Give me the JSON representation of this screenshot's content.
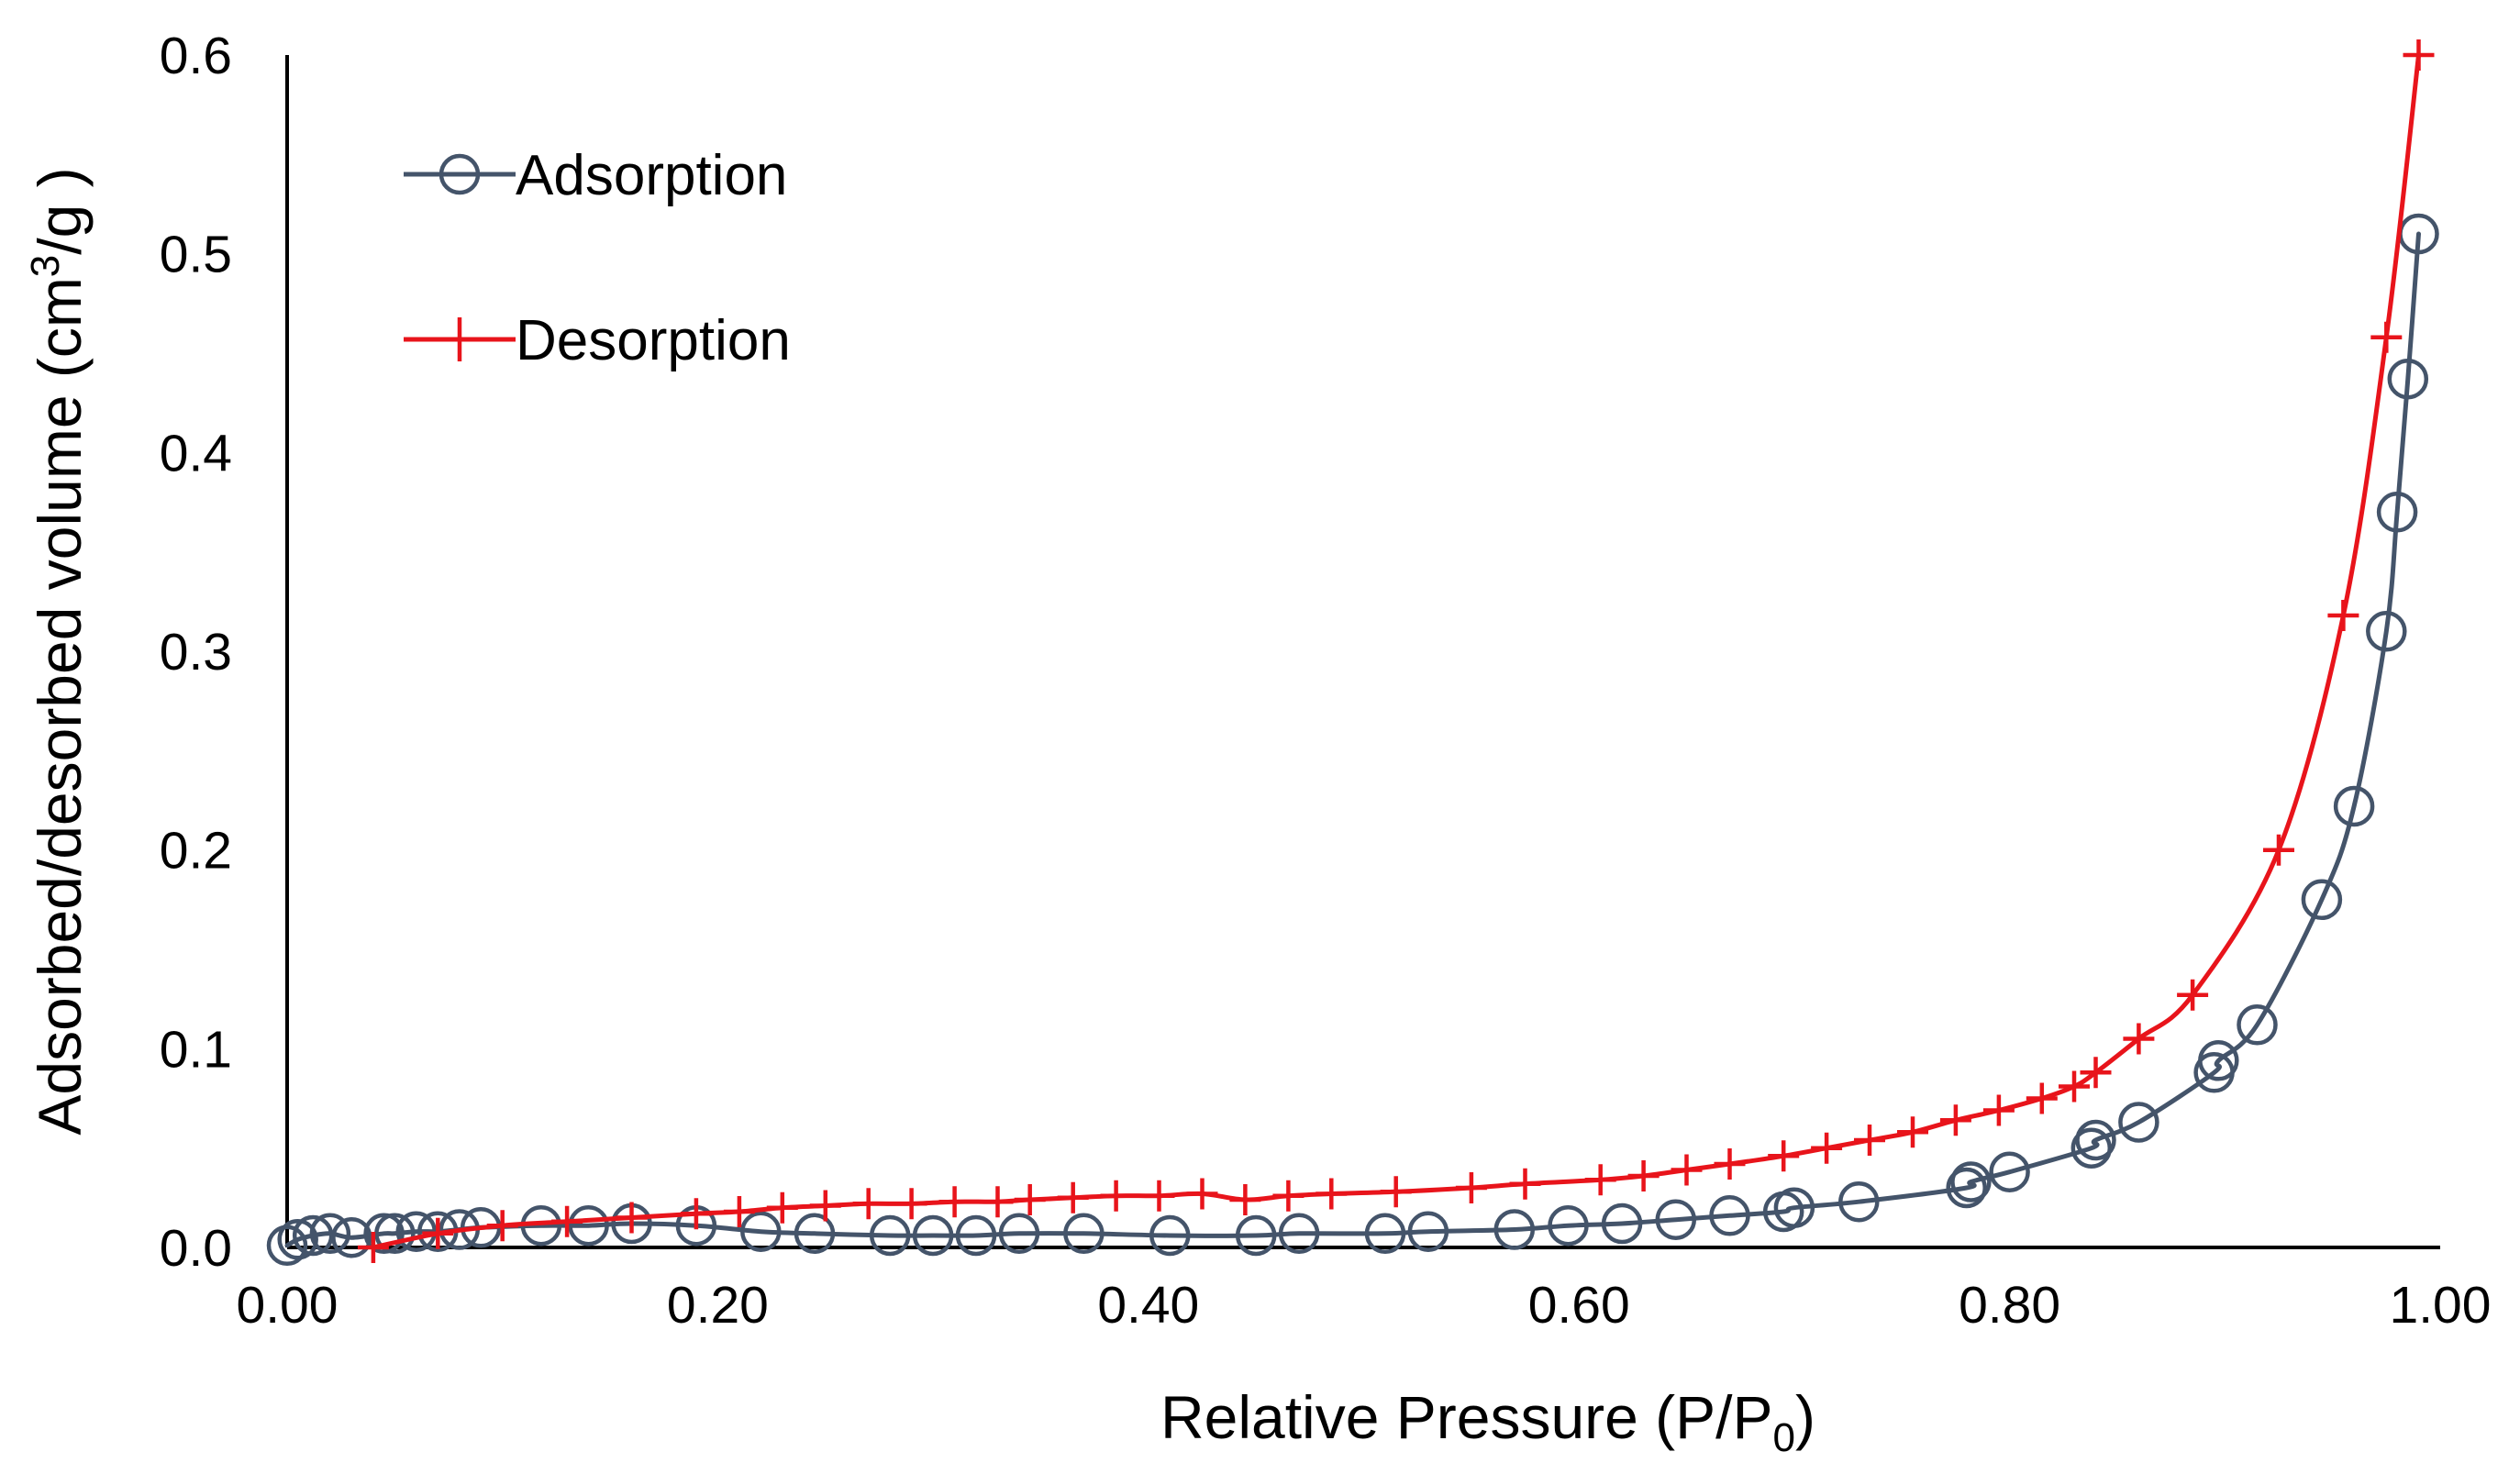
{
  "chart_data": {
    "type": "line",
    "title": "",
    "xlabel": {
      "prefix": "Relative Pressure (P/P",
      "subscript": "0",
      "suffix": ")"
    },
    "ylabel": {
      "prefix": "Adsorbed/desorbed volume (cm",
      "superscript": "3",
      "suffix": "/g )"
    },
    "xlim": [
      0,
      1
    ],
    "ylim": [
      0,
      0.6
    ],
    "xticks": [
      0,
      0.2,
      0.4,
      0.6,
      0.8,
      1.0
    ],
    "xtick_labels": [
      "0.00",
      "0.20",
      "0.40",
      "0.60",
      "0.80",
      "1.00"
    ],
    "yticks": [
      0,
      0.1,
      0.2,
      0.3,
      0.4,
      0.5,
      0.6
    ],
    "ytick_labels": [
      "0.0",
      "0.1",
      "0.2",
      "0.3",
      "0.4",
      "0.5",
      "0.6"
    ],
    "grid": false,
    "legend_position": "top-left",
    "series": [
      {
        "name": "Adsorption",
        "color": "#44546A",
        "marker": "circle",
        "x": [
          0.0,
          0.005,
          0.012,
          0.02,
          0.03,
          0.045,
          0.05,
          0.06,
          0.07,
          0.08,
          0.09,
          0.118,
          0.14,
          0.16,
          0.19,
          0.22,
          0.245,
          0.28,
          0.3,
          0.32,
          0.34,
          0.37,
          0.41,
          0.45,
          0.47,
          0.51,
          0.53,
          0.57,
          0.595,
          0.62,
          0.645,
          0.67,
          0.695,
          0.7,
          0.73,
          0.78,
          0.782,
          0.8,
          0.838,
          0.84,
          0.86,
          0.895,
          0.897,
          0.915,
          0.945,
          0.96,
          0.975,
          0.98,
          0.985,
          0.99
        ],
        "y": [
          0.001,
          0.004,
          0.006,
          0.007,
          0.005,
          0.007,
          0.007,
          0.008,
          0.008,
          0.009,
          0.01,
          0.011,
          0.011,
          0.012,
          0.011,
          0.008,
          0.007,
          0.006,
          0.006,
          0.006,
          0.007,
          0.007,
          0.006,
          0.006,
          0.007,
          0.007,
          0.008,
          0.009,
          0.011,
          0.012,
          0.014,
          0.016,
          0.018,
          0.02,
          0.023,
          0.03,
          0.033,
          0.038,
          0.05,
          0.054,
          0.063,
          0.088,
          0.094,
          0.112,
          0.175,
          0.222,
          0.31,
          0.37,
          0.437,
          0.51
        ]
      },
      {
        "name": "Desorption",
        "color": "#E8141B",
        "marker": "plus",
        "x": [
          0.04,
          0.07,
          0.1,
          0.13,
          0.16,
          0.19,
          0.21,
          0.23,
          0.25,
          0.27,
          0.29,
          0.31,
          0.33,
          0.345,
          0.365,
          0.385,
          0.405,
          0.425,
          0.445,
          0.465,
          0.485,
          0.515,
          0.55,
          0.575,
          0.61,
          0.63,
          0.65,
          0.67,
          0.695,
          0.715,
          0.735,
          0.755,
          0.775,
          0.795,
          0.815,
          0.83,
          0.84,
          0.86,
          0.885,
          0.925,
          0.955,
          0.975,
          0.99
        ],
        "y": [
          0.0,
          0.007,
          0.011,
          0.013,
          0.015,
          0.017,
          0.018,
          0.02,
          0.021,
          0.022,
          0.022,
          0.023,
          0.023,
          0.024,
          0.025,
          0.026,
          0.026,
          0.027,
          0.024,
          0.026,
          0.027,
          0.028,
          0.03,
          0.032,
          0.034,
          0.036,
          0.039,
          0.042,
          0.046,
          0.05,
          0.054,
          0.058,
          0.064,
          0.069,
          0.075,
          0.081,
          0.088,
          0.105,
          0.127,
          0.2,
          0.318,
          0.458,
          0.6
        ]
      }
    ]
  }
}
